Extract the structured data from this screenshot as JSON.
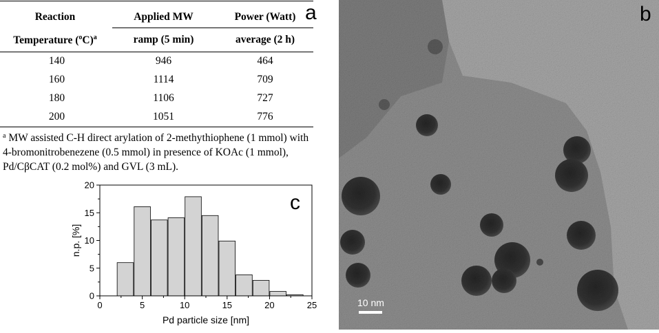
{
  "panel_a": {
    "letter": "a",
    "headers": {
      "col1_line1": "Reaction",
      "col1_line2": "Temperature (",
      "col1_line2_sup": "o",
      "col1_line2_end": "C)",
      "col1_line2_mark": "a",
      "col2_line1": "Applied MW",
      "col2_line2": "ramp (5 min)",
      "col3_line1": "Power (Watt)",
      "col3_line2": "average (2 h)"
    },
    "rows": [
      {
        "temperature": "140",
        "ramp": "946",
        "average": "464"
      },
      {
        "temperature": "160",
        "ramp": "1114",
        "average": "709"
      },
      {
        "temperature": "180",
        "ramp": "1106",
        "average": "727"
      },
      {
        "temperature": "200",
        "ramp": "1051",
        "average": "776"
      }
    ],
    "footnote_mark": "a",
    "footnote": " MW assisted C-H direct arylation of 2-methythiophene (1 mmol) with 4-bromonitrobenezene (0.5 mmol) in presence of KOAc (1 mmol),  Pd/CβCAT (0.2 mol%) and GVL (3 mL)."
  },
  "panel_b": {
    "letter": "b",
    "scale_bar_label": "10 nm",
    "colors": {
      "background": "#8a8a8a",
      "particle": "#2f2f2f",
      "film": "#a3a3a3"
    }
  },
  "chart_data": {
    "type": "bar",
    "panel_letter": "c",
    "xlabel": "Pd particle size [nm]",
    "ylabel": "n.p. [%]",
    "xlim": [
      0,
      25
    ],
    "ylim": [
      0,
      20
    ],
    "xticks": [
      0,
      5,
      10,
      15,
      20,
      25
    ],
    "yticks": [
      0,
      5,
      10,
      15,
      20
    ],
    "bin_width": 2,
    "bins": [
      3,
      5,
      7,
      9,
      11,
      13,
      15,
      17,
      19,
      21,
      23
    ],
    "values": [
      6.0,
      16.1,
      13.7,
      14.1,
      17.9,
      14.5,
      9.9,
      3.8,
      2.8,
      0.8,
      0.2
    ],
    "bar_color": "#d3d3d3",
    "grid": false,
    "legend": "none"
  }
}
